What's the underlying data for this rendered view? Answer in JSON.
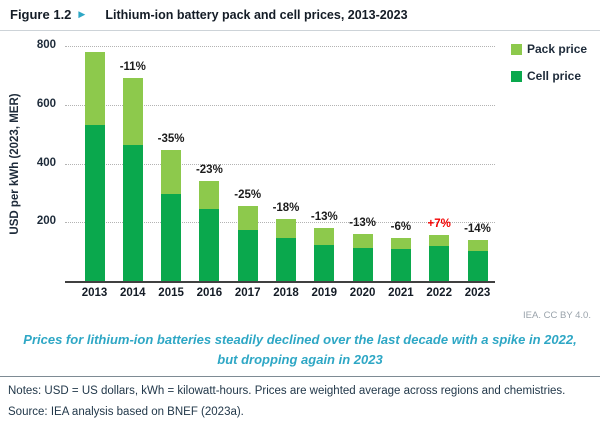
{
  "header": {
    "figure_label": "Figure 1.2",
    "arrow_icon": "triangle-right",
    "title": "Lithium-ion battery pack and cell prices, 2013-2023"
  },
  "chart_data": {
    "type": "bar",
    "stacked": true,
    "title": "Lithium-ion battery pack and cell prices, 2013-2023",
    "categories": [
      "2013",
      "2014",
      "2015",
      "2016",
      "2017",
      "2018",
      "2019",
      "2020",
      "2021",
      "2022",
      "2023"
    ],
    "series": [
      {
        "name": "Cell price",
        "color": "#0aa84d",
        "values": [
          530,
          463,
          296,
          245,
          175,
          145,
          122,
          113,
          109,
          120,
          103
        ]
      },
      {
        "name": "Pack price",
        "color": "#8dc94c",
        "values": [
          250,
          227,
          150,
          97,
          80,
          65,
          60,
          46,
          37,
          37,
          36
        ]
      }
    ],
    "totals": [
      780,
      690,
      446,
      342,
      255,
      210,
      182,
      159,
      146,
      157,
      139
    ],
    "change_labels": [
      "",
      "-11%",
      "-35%",
      "-23%",
      "-25%",
      "-18%",
      "-13%",
      "-13%",
      "-6%",
      "+7%",
      "-14%"
    ],
    "change_label_colors": [
      "",
      "#1b1b1b",
      "#1b1b1b",
      "#1b1b1b",
      "#1b1b1b",
      "#1b1b1b",
      "#1b1b1b",
      "#1b1b1b",
      "#1b1b1b",
      "#f30000",
      "#1b1b1b"
    ],
    "ylabel": "USD per kWh (2023, MER)",
    "yticks": [
      200,
      400,
      600,
      800
    ],
    "ylim": [
      0,
      820
    ],
    "grid": "horizontal-dotted",
    "legend_position": "top-right",
    "legend": [
      "Pack price",
      "Cell price"
    ]
  },
  "attribution": "IEA. CC BY 4.0.",
  "caption": {
    "line1": "Prices for lithium-ion batteries steadily declined over the last decade with a spike in 2022,",
    "line2": "but dropping again in 2023"
  },
  "footer": {
    "notes": "Notes: USD = US dollars, kWh = kilowatt-hours. Prices are weighted average across regions and chemistries.",
    "source": "Source: IEA analysis based on BNEF (2023a)."
  }
}
